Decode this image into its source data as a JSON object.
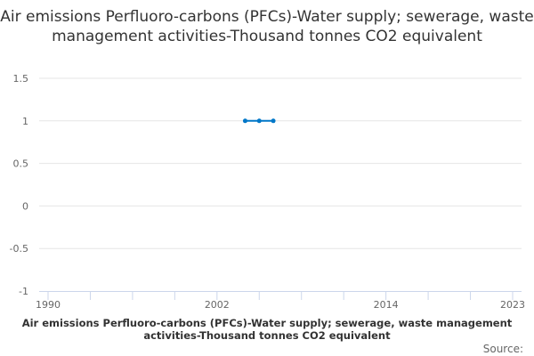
{
  "chart_data": {
    "type": "line",
    "title": "Air emissions Perfluoro-carbons (PFCs)-Water supply; sewerage, waste management activities-Thousand tonnes CO2 equivalent",
    "xlabel": "",
    "ylabel": "",
    "xlim": [
      1990,
      2023
    ],
    "ylim": [
      -1,
      1.5
    ],
    "x_ticks": [
      1990,
      2002,
      2014,
      2023
    ],
    "x_minor_ticks": [
      1990,
      1993,
      1996,
      1999,
      2002,
      2005,
      2008,
      2011,
      2014,
      2017,
      2020,
      2023
    ],
    "y_ticks": [
      -1,
      -0.5,
      0,
      0.5,
      1,
      1.5
    ],
    "y_tick_labels": [
      "-1",
      "-0.5",
      "0",
      "0.5",
      "1",
      "1.5"
    ],
    "grid": true,
    "series": [
      {
        "name": "Air emissions Perfluoro-carbons (PFCs)-Water supply; sewerage, waste management activities-Thousand tonnes CO2 equivalent",
        "color": "#0077c8",
        "x": [
          2004,
          2005,
          2006
        ],
        "values": [
          1,
          1,
          1
        ]
      }
    ],
    "legend_position": "bottom",
    "source_label": "Source:"
  }
}
